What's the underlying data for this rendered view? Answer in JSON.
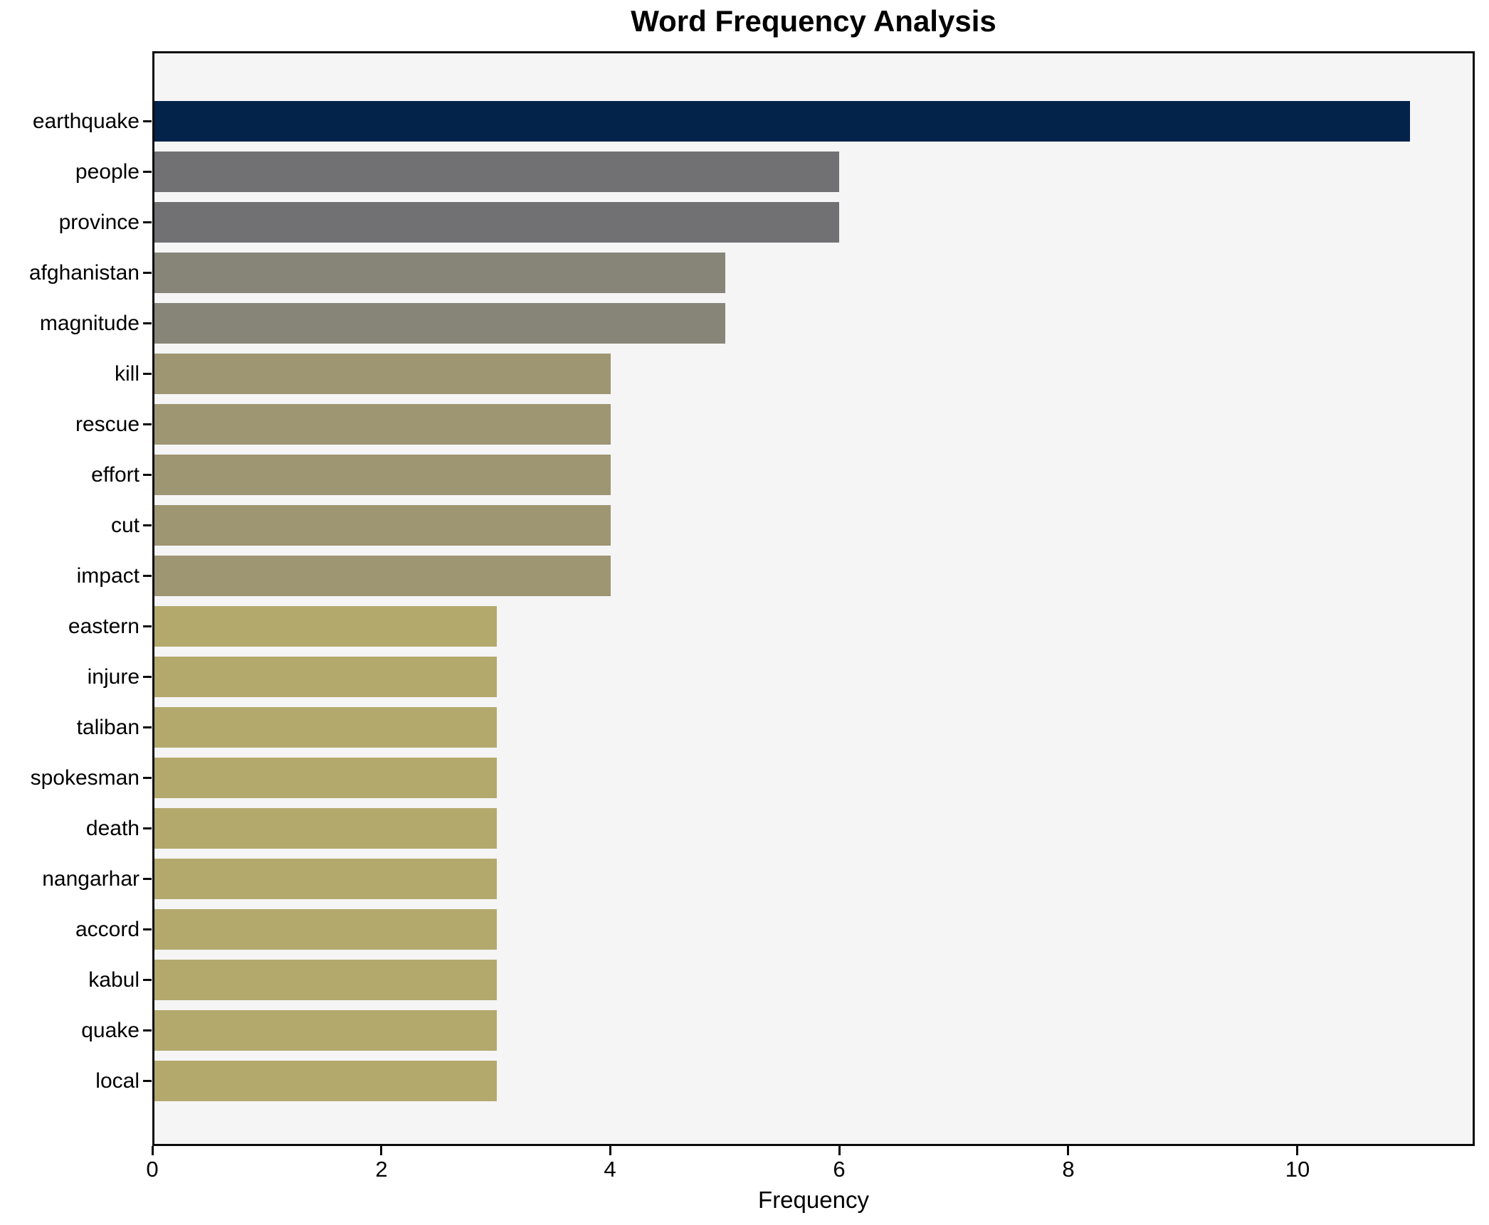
{
  "chart_data": {
    "type": "bar",
    "orientation": "horizontal",
    "title": "Word Frequency Analysis",
    "xlabel": "Frequency",
    "ylabel": "",
    "categories": [
      "earthquake",
      "people",
      "province",
      "afghanistan",
      "magnitude",
      "kill",
      "rescue",
      "effort",
      "cut",
      "impact",
      "eastern",
      "injure",
      "taliban",
      "spokesman",
      "death",
      "nangarhar",
      "accord",
      "kabul",
      "quake",
      "local"
    ],
    "values": [
      11,
      6,
      6,
      5,
      5,
      4,
      4,
      4,
      4,
      4,
      3,
      3,
      3,
      3,
      3,
      3,
      3,
      3,
      3,
      3
    ],
    "bar_colors": [
      "#04234b",
      "#717174",
      "#717174",
      "#868578",
      "#868578",
      "#9e9572",
      "#9e9572",
      "#9e9572",
      "#9e9572",
      "#9e9572",
      "#b3a96c",
      "#b3a96c",
      "#b3a96c",
      "#b3a96c",
      "#b3a96c",
      "#b3a96c",
      "#b3a96c",
      "#b3a96c",
      "#b3a96c",
      "#b3a96c"
    ],
    "xlim": [
      0,
      11.55
    ],
    "xticks": [
      0,
      2,
      4,
      6,
      8,
      10
    ],
    "grid": false,
    "legend": false,
    "plot_background": "#f5f5f6",
    "figure_background": "#ffffff",
    "spine_color": "#0a0a0a"
  }
}
